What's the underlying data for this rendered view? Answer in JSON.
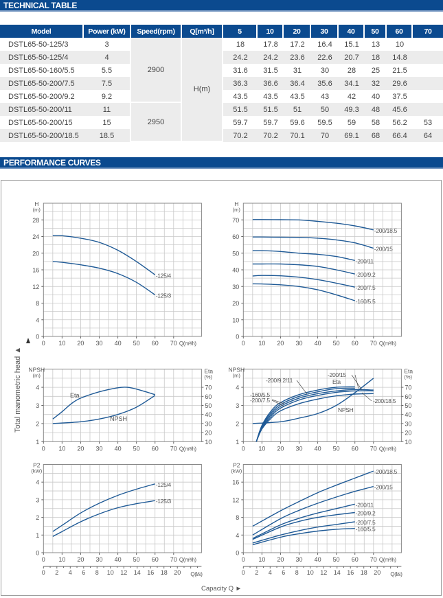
{
  "sections": {
    "technical_table": "TECHNICAL TABLE",
    "performance_curves": "PERFORMANCE CURVES"
  },
  "table": {
    "headers": {
      "model": "Model",
      "power": "Power (kW)",
      "speed": "Speed(rpm)",
      "q": "Q[m³/h]"
    },
    "flow_values": [
      "5",
      "10",
      "20",
      "30",
      "40",
      "50",
      "60",
      "70"
    ],
    "h_unit": "H(m)",
    "speed_groups": [
      "2900",
      "2950"
    ],
    "rows": [
      {
        "model": "DSTL65-50-125/3",
        "power": "3",
        "h": [
          "18",
          "17.8",
          "17.2",
          "16.4",
          "15.1",
          "13",
          "10",
          ""
        ]
      },
      {
        "model": "DSTL65-50-125/4",
        "power": "4",
        "h": [
          "24.2",
          "24.2",
          "23.6",
          "22.6",
          "20.7",
          "18",
          "14.8",
          ""
        ]
      },
      {
        "model": "DSTL65-50-160/5.5",
        "power": "5.5",
        "h": [
          "31.6",
          "31.5",
          "31",
          "30",
          "28",
          "25",
          "21.5",
          ""
        ]
      },
      {
        "model": "DSTL65-50-200/7.5",
        "power": "7.5",
        "h": [
          "36.3",
          "36.6",
          "36.4",
          "35.6",
          "34.1",
          "32",
          "29.6",
          ""
        ]
      },
      {
        "model": "DSTL65-50-200/9.2",
        "power": "9.2",
        "h": [
          "43.5",
          "43.5",
          "43.5",
          "43",
          "42",
          "40",
          "37.5",
          ""
        ]
      },
      {
        "model": "DSTL65-50-200/11",
        "power": "11",
        "h": [
          "51.5",
          "51.5",
          "51",
          "50",
          "49.3",
          "48",
          "45.6",
          ""
        ]
      },
      {
        "model": "DSTL65-50-200/15",
        "power": "15",
        "h": [
          "59.7",
          "59.7",
          "59.6",
          "59.5",
          "59",
          "58",
          "56.2",
          "53"
        ]
      },
      {
        "model": "DSTL65-50-200/18.5",
        "power": "18.5",
        "h": [
          "70.2",
          "70.2",
          "70.1",
          "70",
          "69.1",
          "68",
          "66.4",
          "64"
        ]
      }
    ]
  },
  "axis_titles": {
    "vertical": "Total manometric head ▲",
    "horizontal": "Capacity Q ►"
  },
  "colors": {
    "header": "#0b4a8f",
    "curve": "#1f5a96",
    "grid": "#c8c8c8",
    "frame": "#888888"
  },
  "chart_data": [
    {
      "type": "line",
      "y_label": "H",
      "y_unit": "(m)",
      "x_label": "Q(m³/h)",
      "xlim": [
        0,
        85
      ],
      "ylim": [
        0,
        32
      ],
      "grid": true,
      "x_ticks": [
        0,
        10,
        20,
        30,
        40,
        50,
        60,
        70
      ],
      "y_ticks": [
        0,
        4,
        8,
        12,
        16,
        20,
        24,
        28
      ],
      "series": [
        {
          "name": "-125/4",
          "x": [
            5,
            10,
            20,
            30,
            40,
            50,
            60
          ],
          "y": [
            24.2,
            24.2,
            23.6,
            22.6,
            20.7,
            18,
            14.8
          ]
        },
        {
          "name": "-125/3",
          "x": [
            5,
            10,
            20,
            30,
            40,
            50,
            60
          ],
          "y": [
            18,
            17.8,
            17.2,
            16.4,
            15.1,
            13,
            10
          ]
        }
      ]
    },
    {
      "type": "line",
      "y_label": "H",
      "y_unit": "(m)",
      "x_label": "Q(m³/h)",
      "xlim": [
        0,
        85
      ],
      "ylim": [
        0,
        80
      ],
      "grid": true,
      "x_ticks": [
        0,
        10,
        20,
        30,
        40,
        50,
        60,
        70
      ],
      "y_ticks": [
        0,
        10,
        20,
        30,
        40,
        50,
        60,
        70
      ],
      "series": [
        {
          "name": "-200/18.5",
          "x": [
            5,
            10,
            20,
            30,
            40,
            50,
            60,
            70
          ],
          "y": [
            70.2,
            70.2,
            70.1,
            70,
            69.1,
            68,
            66.4,
            64
          ]
        },
        {
          "name": "-200/15",
          "x": [
            5,
            10,
            20,
            30,
            40,
            50,
            60,
            70
          ],
          "y": [
            59.7,
            59.7,
            59.6,
            59.5,
            59,
            58,
            56.2,
            53
          ]
        },
        {
          "name": "-200/11",
          "x": [
            5,
            10,
            20,
            30,
            40,
            50,
            60
          ],
          "y": [
            51.5,
            51.5,
            51,
            50,
            49.3,
            48,
            45.6
          ]
        },
        {
          "name": "-200/9.2",
          "x": [
            5,
            10,
            20,
            30,
            40,
            50,
            60
          ],
          "y": [
            43.5,
            43.5,
            43.5,
            43,
            42,
            40,
            37.5
          ]
        },
        {
          "name": "-200/7.5",
          "x": [
            5,
            10,
            20,
            30,
            40,
            50,
            60
          ],
          "y": [
            36.3,
            36.6,
            36.4,
            35.6,
            34.1,
            32,
            29.6
          ]
        },
        {
          "name": "-160/5.5",
          "x": [
            5,
            10,
            20,
            30,
            40,
            50,
            60
          ],
          "y": [
            31.6,
            31.5,
            31,
            30,
            28,
            25,
            21.5
          ]
        }
      ]
    },
    {
      "type": "line",
      "y_label": "NPSH",
      "y_unit": "(m)",
      "y2_label": "Eta",
      "y2_unit": "(%)",
      "x_label": "Q(m³/h)",
      "xlim": [
        0,
        85
      ],
      "ylim": [
        1,
        5
      ],
      "y2lim": [
        10,
        90
      ],
      "grid": true,
      "x_ticks": [
        0,
        10,
        20,
        30,
        40,
        50,
        60,
        70
      ],
      "y_ticks": [
        1,
        2,
        3,
        4
      ],
      "y2_ticks": [
        10,
        20,
        30,
        40,
        50,
        60,
        70
      ],
      "series": [
        {
          "name": "Eta",
          "axis": "right",
          "x": [
            5,
            10,
            15,
            20,
            30,
            40,
            45,
            50,
            60
          ],
          "y": [
            35,
            43,
            52,
            58,
            65,
            69.5,
            70,
            68,
            62
          ]
        },
        {
          "name": "NPSH",
          "axis": "left",
          "x": [
            5,
            20,
            30,
            40,
            50,
            60
          ],
          "y": [
            2.0,
            2.1,
            2.25,
            2.5,
            2.9,
            3.55
          ]
        }
      ]
    },
    {
      "type": "line",
      "y_label": "NPSH",
      "y_unit": "(m)",
      "y2_label": "Eta",
      "y2_unit": "(%)",
      "x_label": "Q(m³/h)",
      "xlim": [
        0,
        85
      ],
      "ylim": [
        1,
        5
      ],
      "y2lim": [
        10,
        90
      ],
      "grid": true,
      "x_ticks": [
        0,
        10,
        20,
        30,
        40,
        50,
        60,
        70
      ],
      "y_ticks": [
        1,
        2,
        3,
        4
      ],
      "y2_ticks": [
        10,
        20,
        30,
        40,
        50,
        60,
        70
      ],
      "annotations": [
        "-200/15",
        "-200/9.2/11",
        "-160/5.5",
        "-200/7.5",
        "-200/18.5",
        "Eta",
        "NPSH"
      ],
      "series": [
        {
          "name": "-160/5.5",
          "axis": "right",
          "x": [
            7,
            10,
            15,
            20,
            30,
            40,
            50,
            60
          ],
          "y": [
            10,
            28,
            44,
            53,
            62,
            67,
            70,
            70.5
          ]
        },
        {
          "name": "-200/7.5",
          "axis": "right",
          "x": [
            7,
            10,
            15,
            20,
            30,
            40,
            50,
            60
          ],
          "y": [
            10,
            27,
            42,
            51,
            60,
            65,
            68.5,
            69
          ]
        },
        {
          "name": "-200/9.2/11",
          "axis": "right",
          "x": [
            7,
            10,
            15,
            20,
            30,
            40,
            50,
            60,
            70
          ],
          "y": [
            10,
            26,
            40,
            49,
            58,
            63,
            66,
            67.5,
            67
          ]
        },
        {
          "name": "-200/15",
          "axis": "right",
          "x": [
            7,
            10,
            15,
            20,
            30,
            40,
            50,
            60,
            70
          ],
          "y": [
            10,
            25,
            38,
            47,
            56,
            61,
            64.5,
            66,
            66
          ]
        },
        {
          "name": "-200/18.5",
          "axis": "right",
          "x": [
            7,
            10,
            15,
            20,
            30,
            40,
            50,
            60,
            70
          ],
          "y": [
            10,
            24,
            36,
            44,
            52,
            57,
            60.5,
            62.5,
            63
          ]
        },
        {
          "name": "NPSH",
          "axis": "left",
          "x": [
            5,
            20,
            30,
            40,
            50,
            60,
            70
          ],
          "y": [
            2.0,
            2.1,
            2.3,
            2.55,
            3.0,
            3.7,
            4.5
          ]
        }
      ]
    },
    {
      "type": "line",
      "y_label": "P2",
      "y_unit": "(kW)",
      "x_label": "Q(m³/h)",
      "x2_label": "Q(l/s)",
      "xlim": [
        0,
        85
      ],
      "ylim": [
        0,
        5
      ],
      "grid": true,
      "x_ticks": [
        0,
        10,
        20,
        30,
        40,
        50,
        60,
        70
      ],
      "y_ticks": [
        0,
        1,
        2,
        3,
        4
      ],
      "x2_ticks": [
        0,
        2,
        4,
        6,
        8,
        10,
        12,
        14,
        16,
        18,
        20
      ],
      "series": [
        {
          "name": "-125/4",
          "x": [
            5,
            10,
            20,
            30,
            40,
            50,
            60
          ],
          "y": [
            1.2,
            1.55,
            2.25,
            2.8,
            3.25,
            3.6,
            3.9
          ]
        },
        {
          "name": "-125/3",
          "x": [
            5,
            10,
            20,
            30,
            40,
            50,
            60
          ],
          "y": [
            0.92,
            1.2,
            1.75,
            2.2,
            2.55,
            2.78,
            2.95
          ]
        }
      ]
    },
    {
      "type": "line",
      "y_label": "P2",
      "y_unit": "(kW)",
      "x_label": "Q(m³/h)",
      "x2_label": "Q(l/s)",
      "xlim": [
        0,
        85
      ],
      "ylim": [
        0,
        20
      ],
      "grid": true,
      "x_ticks": [
        0,
        10,
        20,
        30,
        40,
        50,
        60,
        70
      ],
      "y_ticks": [
        0,
        4,
        8,
        12,
        16
      ],
      "x2_ticks": [
        0,
        2,
        4,
        6,
        8,
        10,
        12,
        14,
        16,
        18,
        20
      ],
      "series": [
        {
          "name": "-200/18.5",
          "x": [
            5,
            20,
            30,
            40,
            50,
            60,
            70
          ],
          "y": [
            6,
            9.5,
            11.6,
            13.6,
            15.3,
            16.9,
            18.5
          ]
        },
        {
          "name": "-200/15",
          "x": [
            5,
            20,
            30,
            40,
            50,
            60,
            70
          ],
          "y": [
            4,
            7.7,
            9.6,
            11.2,
            12.6,
            13.9,
            15
          ]
        },
        {
          "name": "-200/11",
          "x": [
            5,
            20,
            30,
            40,
            50,
            60
          ],
          "y": [
            3.2,
            6.3,
            7.8,
            9,
            10,
            11
          ]
        },
        {
          "name": "-200/9.2",
          "x": [
            5,
            20,
            30,
            40,
            50,
            60
          ],
          "y": [
            3,
            5.8,
            7.1,
            8,
            8.6,
            9.1
          ]
        },
        {
          "name": "-200/7.5",
          "x": [
            5,
            20,
            30,
            40,
            50,
            60
          ],
          "y": [
            2.2,
            4,
            5,
            5.8,
            6.4,
            7
          ]
        },
        {
          "name": "-160/5.5",
          "x": [
            5,
            20,
            30,
            40,
            50,
            60
          ],
          "y": [
            1.8,
            3.5,
            4.3,
            4.9,
            5.3,
            5.5
          ]
        }
      ]
    }
  ]
}
